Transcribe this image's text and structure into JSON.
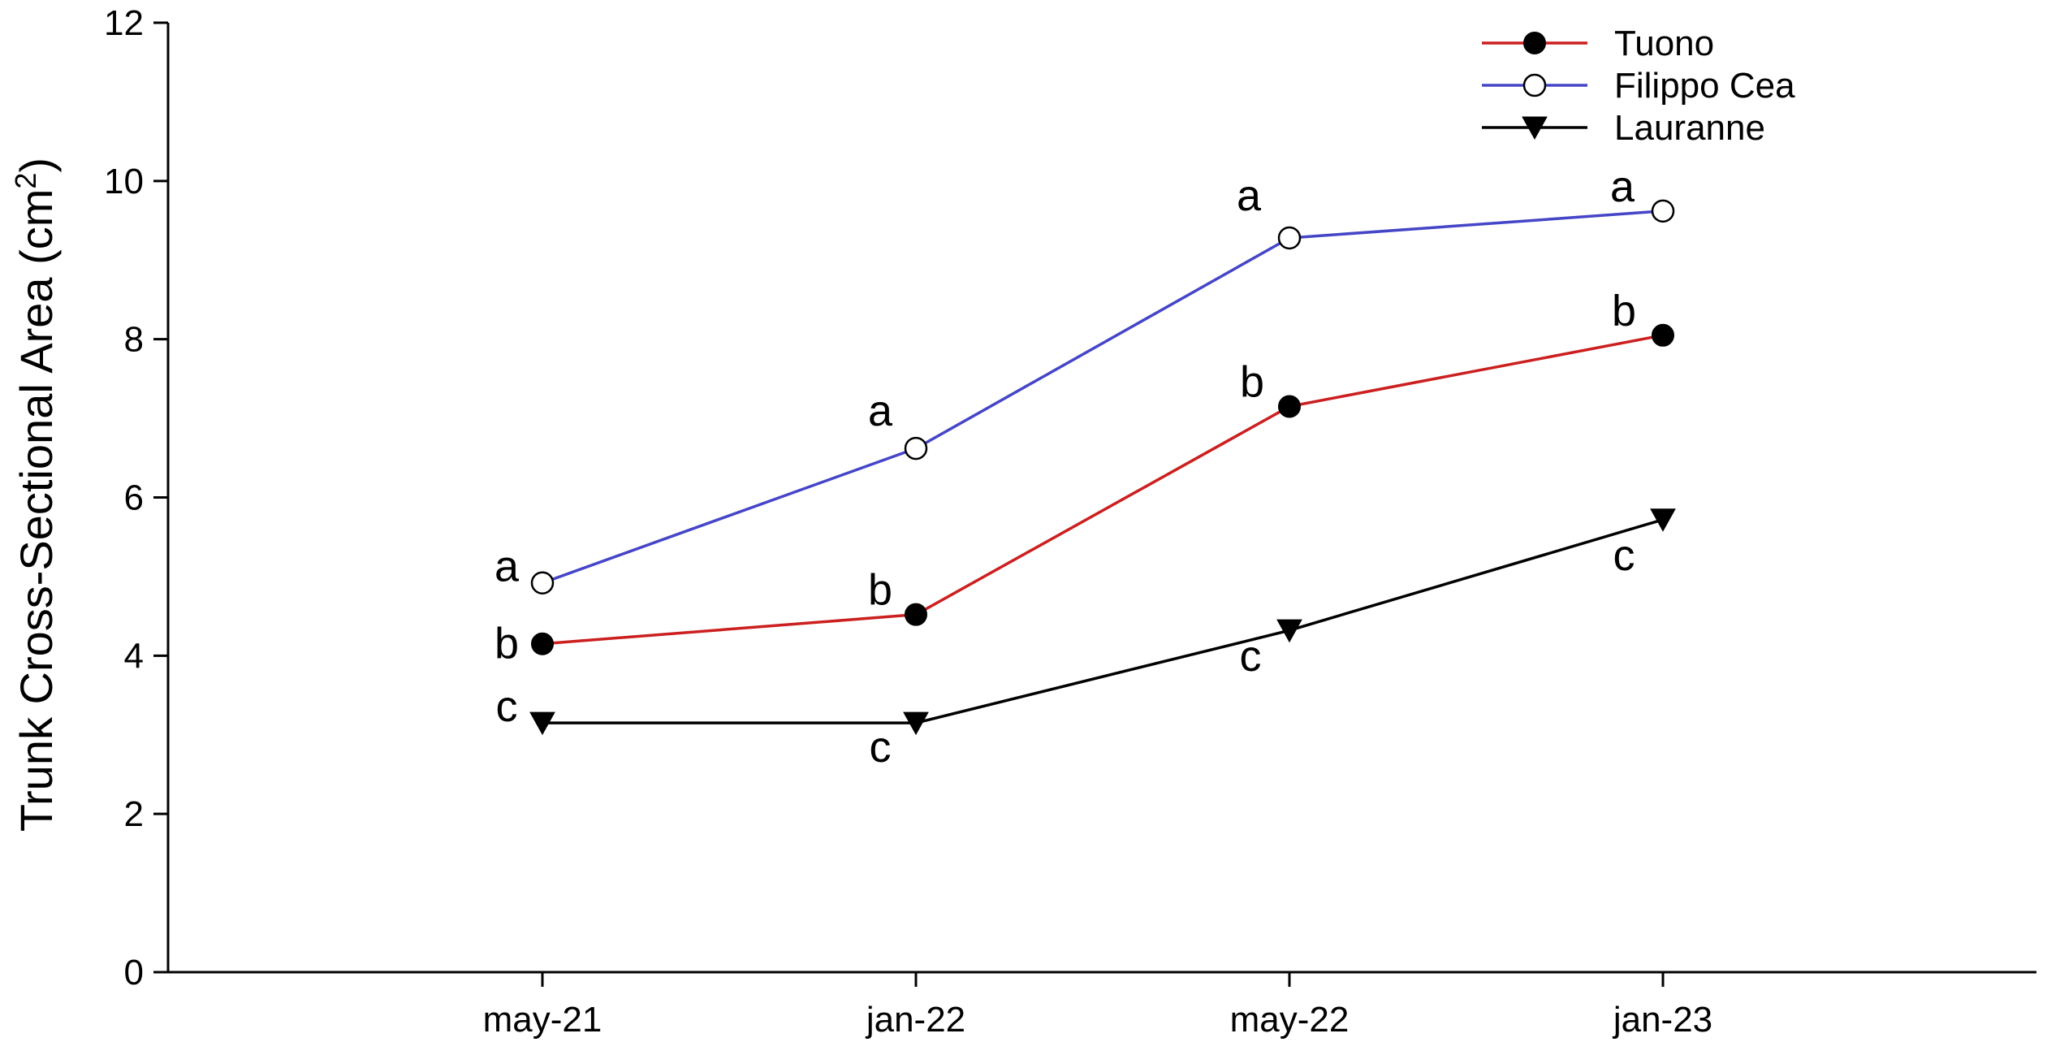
{
  "chart_data": {
    "type": "line",
    "x_type": "category",
    "categories": [
      "may-21",
      "jan-22",
      "may-22",
      "jan-23"
    ],
    "ylabel": "Trunk Cross-Sectional Area (cm²)",
    "ylabel_main": "Trunk Cross-Sectional Area (cm",
    "ylabel_sup": "2",
    "ylabel_close": ")",
    "xlabel": "",
    "title": "",
    "ylim": [
      0,
      12
    ],
    "yticks": [
      0,
      2,
      4,
      6,
      8,
      10,
      12
    ],
    "grid": false,
    "legend_position": "top-right",
    "series": [
      {
        "name": "Tuono",
        "color": "#cc1f1f",
        "marker": "filled-circle",
        "values": [
          4.15,
          4.52,
          7.15,
          8.05
        ],
        "letters": [
          "b",
          "b",
          "b",
          "b"
        ]
      },
      {
        "name": "Filippo Cea",
        "color": "#4545c8",
        "marker": "open-circle",
        "values": [
          4.92,
          6.62,
          9.28,
          9.62
        ],
        "letters": [
          "a",
          "a",
          "a",
          "a"
        ]
      },
      {
        "name": "Lauranne",
        "color": "#000000",
        "marker": "filled-triangle-down",
        "values": [
          3.15,
          3.15,
          4.32,
          5.72
        ],
        "letters": [
          "c",
          "c",
          "c",
          "c"
        ]
      }
    ]
  }
}
